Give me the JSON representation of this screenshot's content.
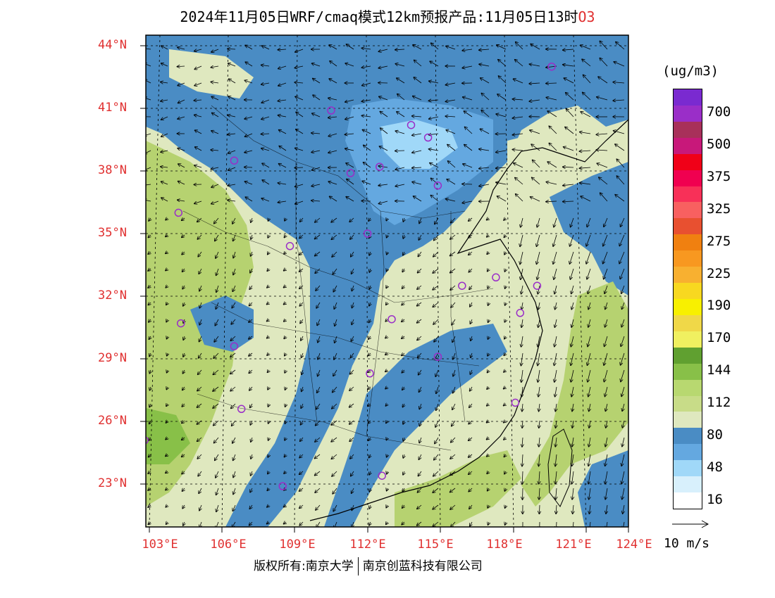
{
  "title": {
    "main": "2024年11月05日WRF/cmaq模式12km预报产品:11月05日13时",
    "species": "O3"
  },
  "colors": {
    "axis_label": "#e03030",
    "low": "#4a8cc4",
    "mid": "#dfe8bf",
    "high": "#b6d270"
  },
  "lat_labels": [
    "44°N",
    "41°N",
    "38°N",
    "35°N",
    "32°N",
    "29°N",
    "26°N",
    "23°N"
  ],
  "lon_labels": [
    "103°E",
    "106°E",
    "109°E",
    "112°E",
    "115°E",
    "118°E",
    "121°E",
    "124°E"
  ],
  "colorbar": {
    "unit": "(ug/m3)",
    "bins": [
      {
        "color": "#7a2ad0"
      },
      {
        "color": "#9a2ec8",
        "label": "700"
      },
      {
        "color": "#a8305a"
      },
      {
        "color": "#c8187a",
        "label": "500"
      },
      {
        "color": "#f00018"
      },
      {
        "color": "#f00050",
        "label": "375"
      },
      {
        "color": "#f83058"
      },
      {
        "color": "#f86060",
        "label": "325"
      },
      {
        "color": "#e85030"
      },
      {
        "color": "#f08010",
        "label": "275"
      },
      {
        "color": "#f89820"
      },
      {
        "color": "#f8b030",
        "label": "225"
      },
      {
        "color": "#f8d820"
      },
      {
        "color": "#f8f000",
        "label": "190"
      },
      {
        "color": "#f0d848"
      },
      {
        "color": "#f0f060",
        "label": "170"
      },
      {
        "color": "#60a030"
      },
      {
        "color": "#88c048",
        "label": "144"
      },
      {
        "color": "#b8d870"
      },
      {
        "color": "#c8dc88",
        "label": "112"
      },
      {
        "color": "#dfe8bf"
      },
      {
        "color": "#4a8cc4",
        "label": "80"
      },
      {
        "color": "#64a8e0"
      },
      {
        "color": "#a0d8f8",
        "label": "48"
      },
      {
        "color": "#d8f0fc"
      },
      {
        "color": "#ffffff",
        "label": "16"
      }
    ]
  },
  "wind_scale": "10 m/s",
  "copyright": {
    "left": "版权所有:南京大学",
    "right": "南京创蓝科技有限公司"
  },
  "stations": [
    [
      119.6,
      43.0
    ],
    [
      110.5,
      40.9
    ],
    [
      113.8,
      40.2
    ],
    [
      114.5,
      39.6
    ],
    [
      106.5,
      38.5
    ],
    [
      111.3,
      37.9
    ],
    [
      112.5,
      38.2
    ],
    [
      114.9,
      37.3
    ],
    [
      104.2,
      36.0
    ],
    [
      108.8,
      34.4
    ],
    [
      112.0,
      35.0
    ],
    [
      115.9,
      32.5
    ],
    [
      117.3,
      32.9
    ],
    [
      119.0,
      32.5
    ],
    [
      104.3,
      30.7
    ],
    [
      106.5,
      29.6
    ],
    [
      113.0,
      30.9
    ],
    [
      118.3,
      31.2
    ],
    [
      114.9,
      29.1
    ],
    [
      112.1,
      28.3
    ],
    [
      106.8,
      26.6
    ],
    [
      118.1,
      26.9
    ],
    [
      102.8,
      25.1
    ],
    [
      108.5,
      22.9
    ],
    [
      112.6,
      23.4
    ]
  ]
}
